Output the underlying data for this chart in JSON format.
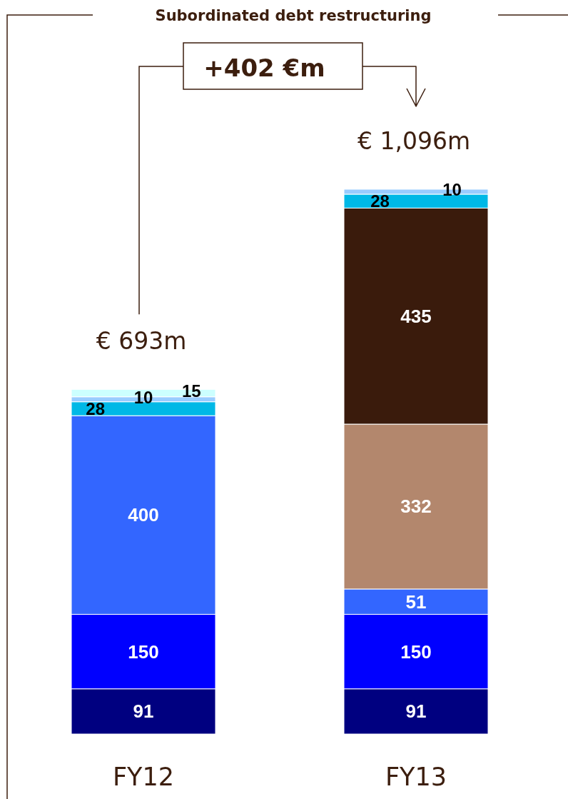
{
  "chart_data": {
    "type": "bar",
    "title": "Subordinated debt restructuring",
    "categories": [
      "FY12",
      "FY13"
    ],
    "series": [
      {
        "color": "#000080",
        "values": [
          91,
          91
        ]
      },
      {
        "color": "#0000ff",
        "values": [
          150,
          150
        ]
      },
      {
        "color": "#3366ff",
        "values": [
          400,
          51
        ]
      },
      {
        "color": "#b3876d",
        "values": [
          null,
          332
        ]
      },
      {
        "color": "#3a1b0c",
        "values": [
          null,
          435
        ]
      },
      {
        "color": "#00b8e6",
        "values": [
          28,
          28
        ]
      },
      {
        "color": "#99ccff",
        "values": [
          10,
          10
        ]
      },
      {
        "color": "#ccffff",
        "values": [
          15,
          null
        ]
      }
    ],
    "stacked": true,
    "data_labels": true,
    "totals": [
      "€ 693m",
      "€ 1,096m"
    ],
    "annotations": [
      "+402 €m"
    ],
    "tick_labels": "x"
  }
}
